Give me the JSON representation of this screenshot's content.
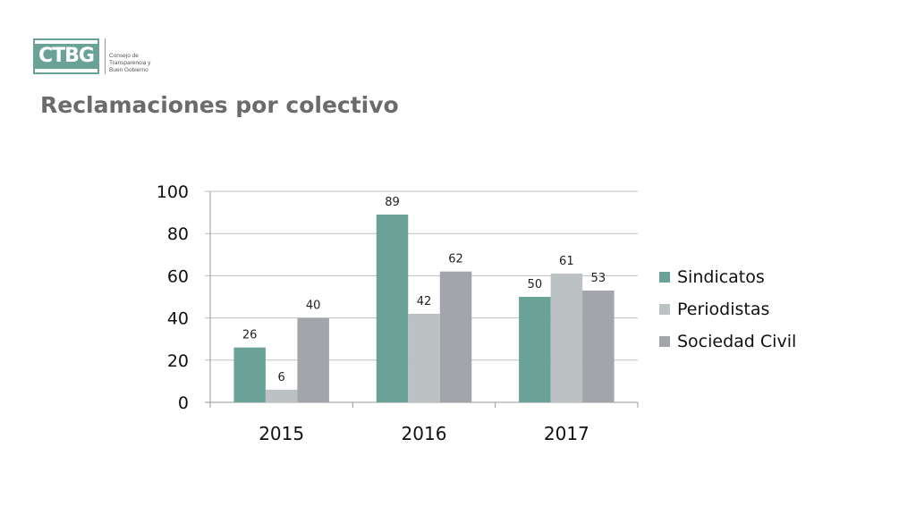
{
  "header": {
    "logo_text": "CTBG",
    "logo_subtitle_lines": [
      "Consejo de",
      "Transparencia y",
      "Buen Gobierno"
    ],
    "title": "Reclamaciones por colectivo"
  },
  "colors": {
    "brand": "#6ba297",
    "gridline": "#bfbfbf",
    "axis": "#999999"
  },
  "chart_data": {
    "type": "bar",
    "title": "",
    "xlabel": "",
    "ylabel": "",
    "categories": [
      "2015",
      "2016",
      "2017"
    ],
    "series": [
      {
        "name": "Sindicatos",
        "values": [
          26,
          89,
          50
        ],
        "color": "#6ba297"
      },
      {
        "name": "Periodistas",
        "values": [
          6,
          42,
          61
        ],
        "color": "#bcc1c4"
      },
      {
        "name": "Sociedad Civil",
        "values": [
          40,
          62,
          53
        ],
        "color": "#a2a6aa"
      }
    ],
    "yticks": [
      "0",
      "20",
      "40",
      "60",
      "80",
      "100"
    ],
    "ylim": [
      0,
      100
    ],
    "grid": true,
    "legend_position": "right"
  }
}
